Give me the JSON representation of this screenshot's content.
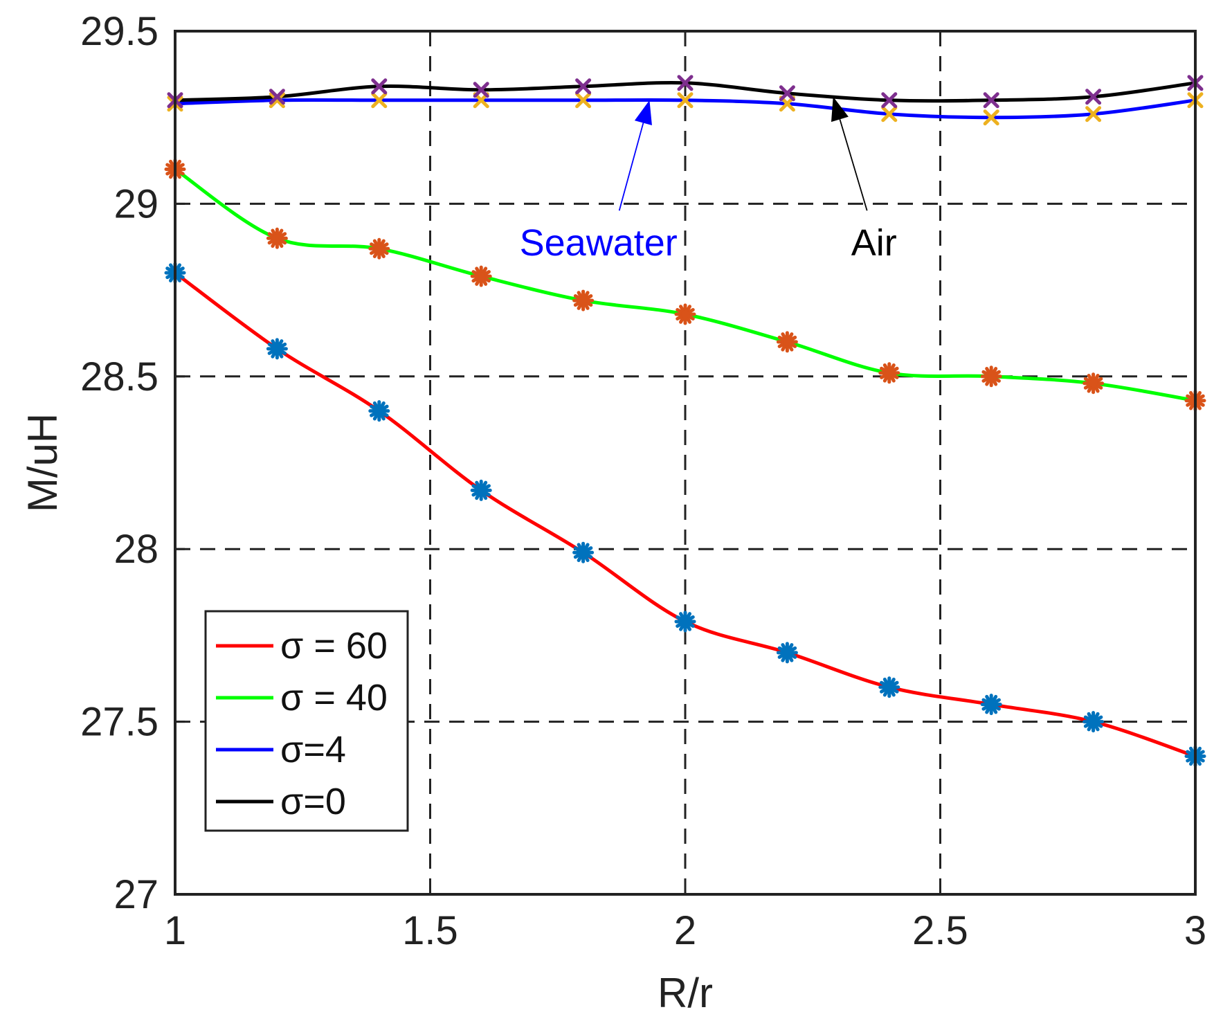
{
  "chart_data": {
    "type": "line",
    "title": "",
    "xlabel": "R/r",
    "ylabel": "M/uH",
    "xlim": [
      1,
      3
    ],
    "ylim": [
      27,
      29.5
    ],
    "xticks": [
      1,
      1.5,
      2,
      2.5,
      3
    ],
    "xtick_labels": [
      "1",
      "1.5",
      "2",
      "2.5",
      "3"
    ],
    "yticks": [
      27,
      27.5,
      28,
      28.5,
      29,
      29.5
    ],
    "ytick_labels": [
      "27",
      "27.5",
      "28",
      "28.5",
      "29",
      "29.5"
    ],
    "grid": "dashed",
    "legend_position": "bottom-left",
    "x": [
      1,
      1.2,
      1.4,
      1.6,
      1.8,
      2,
      2.2,
      2.4,
      2.6,
      2.8,
      3
    ],
    "series": [
      {
        "name": "σ = 60",
        "color": "#ff0000",
        "marker": "asterisk",
        "marker_color": "#0072bd",
        "values": [
          28.8,
          28.58,
          28.4,
          28.17,
          27.99,
          27.79,
          27.7,
          27.6,
          27.55,
          27.5,
          27.4
        ]
      },
      {
        "name": "σ = 40",
        "color": "#00ff00",
        "marker": "asterisk",
        "marker_color": "#d95319",
        "values": [
          29.1,
          28.9,
          28.87,
          28.79,
          28.72,
          28.68,
          28.6,
          28.51,
          28.5,
          28.48,
          28.43
        ]
      },
      {
        "name": "σ=4",
        "color": "#0000ff",
        "marker": "x",
        "marker_color": "#edb120",
        "values": [
          29.29,
          29.3,
          29.3,
          29.3,
          29.3,
          29.3,
          29.29,
          29.26,
          29.25,
          29.26,
          29.3
        ]
      },
      {
        "name": "σ=0",
        "color": "#000000",
        "marker": "x",
        "marker_color": "#7e2f8e",
        "values": [
          29.3,
          29.31,
          29.34,
          29.33,
          29.34,
          29.35,
          29.32,
          29.3,
          29.3,
          29.31,
          29.35
        ]
      }
    ],
    "annotations": [
      {
        "text": "Seawater",
        "color": "#0000ff",
        "x": 1.83,
        "y": 28.87,
        "arrow_to": [
          1.93,
          29.3
        ]
      },
      {
        "text": "Air",
        "color": "#000000",
        "x": 2.37,
        "y": 28.87,
        "arrow_to": [
          2.29,
          29.31
        ]
      }
    ]
  }
}
